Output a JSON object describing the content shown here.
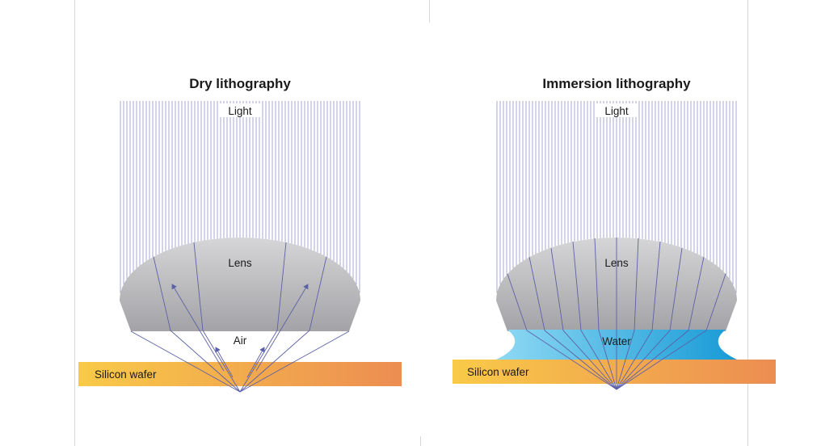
{
  "page": {
    "background": "#ffffff"
  },
  "panels": {
    "dry": {
      "title": "Dry lithography",
      "labels": {
        "light": "Light",
        "lens": "Lens",
        "medium": "Air",
        "wafer": "Silicon wafer"
      }
    },
    "immersion": {
      "title": "Immersion lithography",
      "labels": {
        "light": "Light",
        "lens": "Lens",
        "medium": "Water",
        "wafer": "Silicon wafer"
      }
    }
  },
  "colors": {
    "ray": "#5c60a8",
    "lens_top": "#d6d6d8",
    "lens_bottom": "#a3a3a7",
    "water_left": "#8fd9f3",
    "water_right": "#189ad6",
    "wafer_left": "#f9ca48",
    "wafer_right": "#ec8d52",
    "text": "#1a1a1a"
  }
}
